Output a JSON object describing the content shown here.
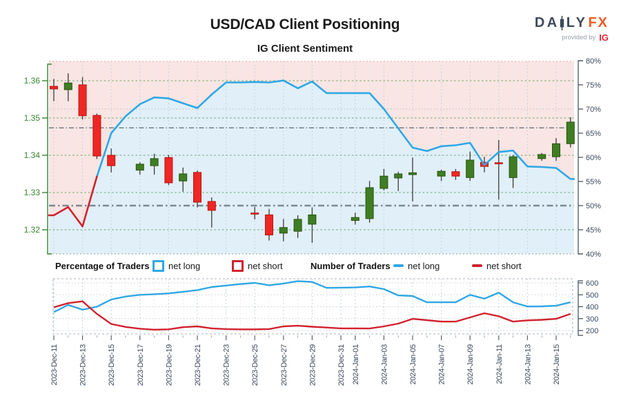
{
  "header": {
    "title": "USD/CAD Client Positioning",
    "subtitle": "IG Client Sentiment",
    "logo": {
      "daily_left": "DA",
      "daily_right": "LY",
      "fx": "FX",
      "provided_by": "provided by",
      "ig": "IG"
    }
  },
  "legend": {
    "percentage_label": "Percentage of Traders",
    "number_label": "Number of Traders",
    "net_long_label": "net long",
    "net_short_label": "net short"
  },
  "colors": {
    "long_line": "#2fa7e4",
    "short_line": "#d2212e",
    "candle_up": "#3f7d22",
    "candle_up_stroke": "#29540f",
    "candle_down": "#ee2724",
    "candle_down_stroke": "#bc1410",
    "wick": "#3a3a3a",
    "area_above_pink": "#f9e5e3",
    "area_below_blue": "#e1eff9",
    "price_axis_green": "#35842f",
    "pct_axis_slate": "#3c4a5e",
    "grid_green": "#4d9b4d",
    "grid_gray": "#b4bcc3",
    "ref_thin": "#66737f",
    "ref_thick": "#7d8791",
    "logo_slate": "#3d4a5c",
    "logo_orange": "#f4591d",
    "logo_ig_red": "#e32636"
  },
  "x_axis": {
    "ticks": [
      {
        "date": "2023-12-11",
        "label": "2023-Dec-11"
      },
      {
        "date": "2023-12-13",
        "label": "2023-Dec-13"
      },
      {
        "date": "2023-12-15",
        "label": "2023-Dec-15"
      },
      {
        "date": "2023-12-17",
        "label": "2023-Dec-17"
      },
      {
        "date": "2023-12-19",
        "label": "2023-Dec-19"
      },
      {
        "date": "2023-12-21",
        "label": "2023-Dec-21"
      },
      {
        "date": "2023-12-23",
        "label": "2023-Dec-23"
      },
      {
        "date": "2023-12-25",
        "label": "2023-Dec-25"
      },
      {
        "date": "2023-12-27",
        "label": "2023-Dec-27"
      },
      {
        "date": "2023-12-29",
        "label": "2023-Dec-29"
      },
      {
        "date": "2023-12-31",
        "label": "2023-Dec-31"
      },
      {
        "date": "2024-01-01",
        "label": "2024-Jan-01"
      },
      {
        "date": "2024-01-03",
        "label": "2024-Jan-03"
      },
      {
        "date": "2024-01-05",
        "label": "2024-Jan-05"
      },
      {
        "date": "2024-01-07",
        "label": "2024-Jan-07"
      },
      {
        "date": "2024-01-09",
        "label": "2024-Jan-09"
      },
      {
        "date": "2024-01-11",
        "label": "2024-Jan-11"
      },
      {
        "date": "2024-01-13",
        "label": "2024-Jan-13"
      },
      {
        "date": "2024-01-15",
        "label": "2024-Jan-15"
      }
    ]
  },
  "chart_data": [
    {
      "type": "candlestick+line",
      "name": "USD/CAD price with IG client sentiment (% net long)",
      "price_axis": {
        "side": "left",
        "labels": [
          "1.36",
          "1.35",
          "1.34",
          "1.33",
          "1.32"
        ],
        "values": [
          1.36,
          1.35,
          1.34,
          1.33,
          1.32
        ]
      },
      "pct_axis": {
        "side": "right",
        "labels": [
          "80%",
          "75%",
          "70%",
          "65%",
          "60%",
          "55%",
          "50%",
          "45%",
          "40%"
        ],
        "values": [
          80,
          75,
          70,
          65,
          60,
          55,
          50,
          45,
          40
        ],
        "range": [
          40,
          80
        ]
      },
      "reference_levels_pct": [
        66.1,
        50
      ],
      "candles": [
        [
          "2023-12-11",
          1.3585,
          1.3605,
          1.3545,
          1.3578
        ],
        [
          "2023-12-12",
          1.3576,
          1.362,
          1.3545,
          1.3594
        ],
        [
          "2023-12-13",
          1.3589,
          1.361,
          1.3496,
          1.3506
        ],
        [
          "2023-12-14",
          1.3507,
          1.3512,
          1.339,
          1.3398
        ],
        [
          "2023-12-15",
          1.34,
          1.3418,
          1.3354,
          1.3372
        ],
        [
          "2023-12-17",
          1.336,
          1.3381,
          1.3348,
          1.3376
        ],
        [
          "2023-12-18",
          1.3372,
          1.3404,
          1.3348,
          1.3391
        ],
        [
          "2023-12-19",
          1.3394,
          1.3401,
          1.332,
          1.3326
        ],
        [
          "2023-12-20",
          1.3331,
          1.3367,
          1.3302,
          1.335
        ],
        [
          "2023-12-21",
          1.3354,
          1.3359,
          1.326,
          1.3274
        ],
        [
          "2023-12-22",
          1.3276,
          1.3287,
          1.3206,
          1.3252
        ],
        [
          "2023-12-25",
          1.3245,
          1.3261,
          1.3228,
          1.3242
        ],
        [
          "2023-12-26",
          1.324,
          1.3256,
          1.3171,
          1.3186
        ],
        [
          "2023-12-27",
          1.3191,
          1.3229,
          1.3169,
          1.3206
        ],
        [
          "2023-12-28",
          1.3196,
          1.3239,
          1.3178,
          1.3228
        ],
        [
          "2023-12-29",
          1.3215,
          1.326,
          1.3165,
          1.324
        ],
        [
          "2024-01-01",
          1.3225,
          1.3246,
          1.3214,
          1.3233
        ],
        [
          "2024-01-02",
          1.323,
          1.3331,
          1.3219,
          1.3313
        ],
        [
          "2024-01-03",
          1.3311,
          1.3363,
          1.3306,
          1.3344
        ],
        [
          "2024-01-04",
          1.3339,
          1.3356,
          1.3304,
          1.335
        ],
        [
          "2024-01-05",
          1.3348,
          1.3394,
          1.3276,
          1.3353
        ],
        [
          "2024-01-07",
          1.3344,
          1.3361,
          1.3331,
          1.3357
        ],
        [
          "2024-01-08",
          1.3356,
          1.3363,
          1.3334,
          1.3344
        ],
        [
          "2024-01-09",
          1.334,
          1.341,
          1.3331,
          1.3387
        ],
        [
          "2024-01-10",
          1.3381,
          1.3396,
          1.3354,
          1.337
        ],
        [
          "2024-01-11",
          1.338,
          1.3441,
          1.3281,
          1.3377
        ],
        [
          "2024-01-12",
          1.334,
          1.3401,
          1.3312,
          1.3396
        ],
        [
          "2024-01-14",
          1.3391,
          1.3406,
          1.3385,
          1.3402
        ],
        [
          "2024-01-15",
          1.3396,
          1.3446,
          1.3385,
          1.3431
        ],
        [
          "2024-01-16",
          1.3431,
          1.3502,
          1.3421,
          1.3489
        ]
      ],
      "sentiment": {
        "name": "net long %",
        "dates": [
          "2023-12-11",
          "2023-12-12",
          "2023-12-13",
          "2023-12-14",
          "2023-12-15",
          "2023-12-16",
          "2023-12-17",
          "2023-12-18",
          "2023-12-19",
          "2023-12-20",
          "2023-12-21",
          "2023-12-22",
          "2023-12-23",
          "2023-12-24",
          "2023-12-25",
          "2023-12-26",
          "2023-12-27",
          "2023-12-28",
          "2023-12-29",
          "2023-12-30",
          "2023-12-31",
          "2024-01-01",
          "2024-01-02",
          "2024-01-03",
          "2024-01-04",
          "2024-01-05",
          "2024-01-06",
          "2024-01-07",
          "2024-01-08",
          "2024-01-09",
          "2024-01-10",
          "2024-01-11",
          "2024-01-12",
          "2024-01-13",
          "2024-01-14",
          "2024-01-15",
          "2024-01-16"
        ],
        "values": [
          48.0,
          49.7,
          45.7,
          56.0,
          65.0,
          68.5,
          71.0,
          72.4,
          72.2,
          71.2,
          70.2,
          73.0,
          75.5,
          75.5,
          75.6,
          75.5,
          75.9,
          74.3,
          75.7,
          73.3,
          73.3,
          73.3,
          73.3,
          70.0,
          66.0,
          62.0,
          61.3,
          62.3,
          62.5,
          63.0,
          58.4,
          61.1,
          61.4,
          58.1,
          58.0,
          57.8,
          55.5
        ],
        "color_rule": "red below 50, blue above 50"
      }
    },
    {
      "type": "line",
      "name": "Number of Traders",
      "y_axis": {
        "side": "right",
        "labels": [
          "600",
          "500",
          "400",
          "300",
          "200"
        ],
        "values": [
          600,
          500,
          400,
          300,
          200
        ]
      },
      "dates": [
        "2023-12-11",
        "2023-12-12",
        "2023-12-13",
        "2023-12-14",
        "2023-12-15",
        "2023-12-16",
        "2023-12-17",
        "2023-12-18",
        "2023-12-19",
        "2023-12-20",
        "2023-12-21",
        "2023-12-22",
        "2023-12-23",
        "2023-12-24",
        "2023-12-25",
        "2023-12-26",
        "2023-12-27",
        "2023-12-28",
        "2023-12-29",
        "2023-12-30",
        "2023-12-31",
        "2024-01-01",
        "2024-01-02",
        "2024-01-03",
        "2024-01-04",
        "2024-01-05",
        "2024-01-06",
        "2024-01-07",
        "2024-01-08",
        "2024-01-09",
        "2024-01-10",
        "2024-01-11",
        "2024-01-12",
        "2024-01-13",
        "2024-01-14",
        "2024-01-15",
        "2024-01-16"
      ],
      "series": [
        {
          "name": "net long",
          "color_key": "long_line",
          "values": [
            355,
            415,
            375,
            400,
            460,
            485,
            500,
            505,
            512,
            525,
            540,
            565,
            578,
            590,
            600,
            580,
            595,
            615,
            608,
            558,
            560,
            562,
            570,
            548,
            495,
            490,
            437,
            437,
            437,
            500,
            467,
            518,
            437,
            402,
            403,
            408,
            437
          ]
        },
        {
          "name": "net short",
          "color_key": "short_line",
          "values": [
            395,
            430,
            445,
            340,
            255,
            230,
            215,
            207,
            210,
            228,
            235,
            218,
            212,
            210,
            210,
            212,
            235,
            240,
            232,
            225,
            218,
            218,
            217,
            235,
            258,
            298,
            287,
            275,
            275,
            310,
            345,
            320,
            275,
            285,
            290,
            298,
            340
          ]
        }
      ]
    }
  ]
}
